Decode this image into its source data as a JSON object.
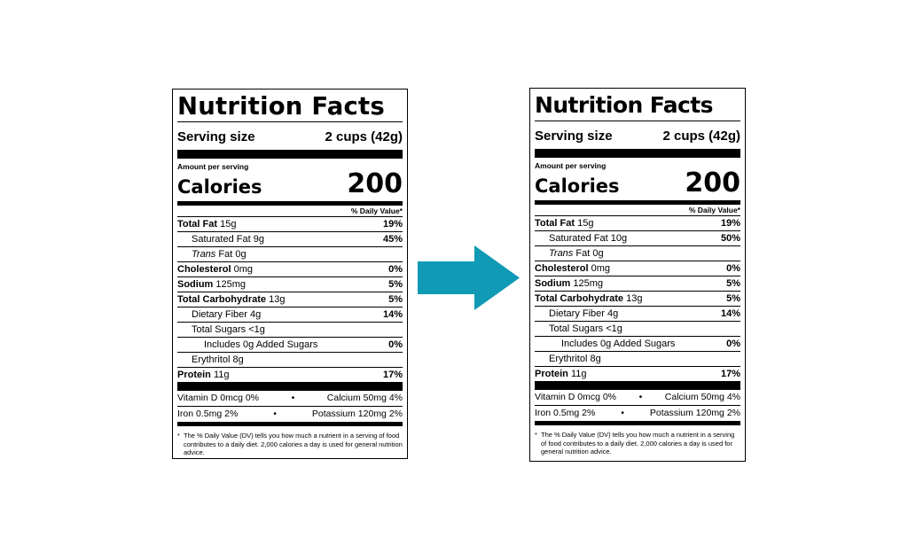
{
  "arrow_color": "#109ab5",
  "labels": {
    "left": {
      "title": "Nutrition Facts",
      "serving_label": "Serving size",
      "serving_value": "2 cups (42g)",
      "amount_per_serving": "Amount per serving",
      "calories_label": "Calories",
      "calories_value": "200",
      "dv_header": "% Daily Value*",
      "total_fat": {
        "name": "Total Fat",
        "amount": "15g",
        "dv": "19%"
      },
      "saturated_fat": {
        "name": "Saturated Fat 9g",
        "dv": "45%"
      },
      "trans_fat": {
        "name": "Trans",
        "amount": "Fat 0g"
      },
      "cholesterol": {
        "name": "Cholesterol",
        "amount": "0mg",
        "dv": "0%"
      },
      "sodium": {
        "name": "Sodium",
        "amount": "125mg",
        "dv": "5%"
      },
      "total_carb": {
        "name": "Total Carbohydrate",
        "amount": "13g",
        "dv": "5%"
      },
      "fiber": {
        "name": "Dietary Fiber 4g",
        "dv": "14%"
      },
      "total_sugars": {
        "name": "Total Sugars <1g"
      },
      "added_sugars": {
        "name": "Includes 0g Added Sugars",
        "dv": "0%"
      },
      "erythritol": {
        "name": "Erythritol 8g"
      },
      "protein": {
        "name": "Protein",
        "amount": "11g",
        "dv": "17%"
      },
      "vitamin_d": "Vitamin D 0mcg 0%",
      "calcium": "Calcium 50mg 4%",
      "iron": "Iron 0.5mg 2%",
      "potassium": "Potassium 120mg 2%",
      "bullet": "•",
      "footnote_star": "*",
      "footnote": "The % Daily Value (DV) tells you how much a nutrient in a serving of food contributes to a daily diet. 2,000 calories a day is used for general nutrition advice."
    },
    "right": {
      "title": "Nutrition Facts",
      "serving_label": "Serving size",
      "serving_value": "2 cups (42g)",
      "amount_per_serving": "Amount per serving",
      "calories_label": "Calories",
      "calories_value": "200",
      "dv_header": "% Daily Value*",
      "total_fat": {
        "name": "Total Fat",
        "amount": "15g",
        "dv": "19%"
      },
      "saturated_fat": {
        "name": "Saturated Fat 10g",
        "dv": "50%"
      },
      "trans_fat": {
        "name": "Trans",
        "amount": "Fat 0g"
      },
      "cholesterol": {
        "name": "Cholesterol",
        "amount": "0mg",
        "dv": "0%"
      },
      "sodium": {
        "name": "Sodium",
        "amount": "125mg",
        "dv": "5%"
      },
      "total_carb": {
        "name": "Total Carbohydrate",
        "amount": "13g",
        "dv": "5%"
      },
      "fiber": {
        "name": "Dietary Fiber 4g",
        "dv": "14%"
      },
      "total_sugars": {
        "name": "Total Sugars <1g"
      },
      "added_sugars": {
        "name": "Includes 0g Added Sugars",
        "dv": "0%"
      },
      "erythritol": {
        "name": "Erythritol 8g"
      },
      "protein": {
        "name": "Protein",
        "amount": "11g",
        "dv": "17%"
      },
      "vitamin_d": "Vitamin D 0mcg 0%",
      "calcium": "Calcium 50mg 4%",
      "iron": "Iron 0.5mg 2%",
      "potassium": "Potassium 120mg 2%",
      "bullet": "•",
      "footnote_star": "*",
      "footnote": "The % Daily Value (DV) tells you how much a nutrient in a serving of food contributes to a daily diet. 2,000 calories a day is used for general nutrition advice."
    }
  }
}
